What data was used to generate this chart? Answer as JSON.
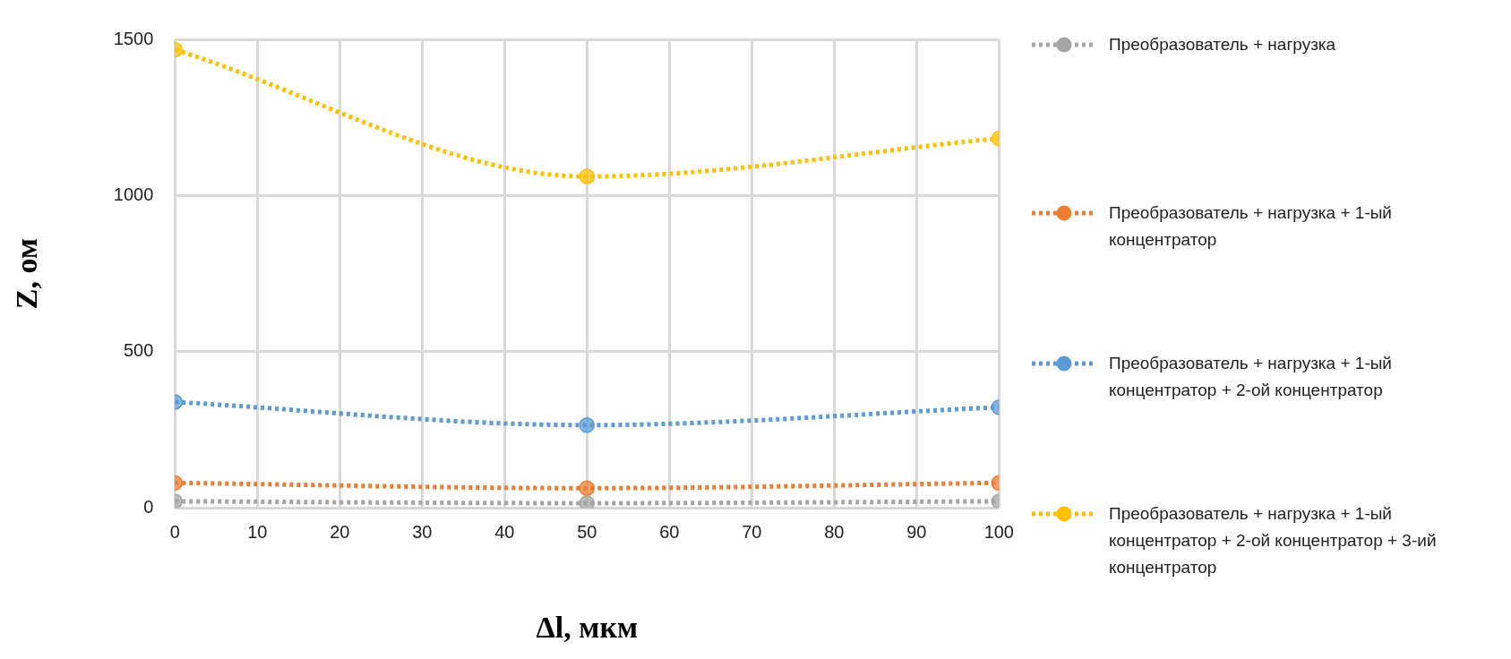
{
  "chart_data": {
    "type": "line",
    "xlabel": "Δl, мкм",
    "ylabel": "Z, ом",
    "x": [
      0,
      50,
      100
    ],
    "xlim": [
      0,
      100
    ],
    "xticks": [
      0,
      10,
      20,
      30,
      40,
      50,
      60,
      70,
      80,
      90,
      100
    ],
    "ylim": [
      0,
      1500
    ],
    "yticks": [
      0,
      500,
      1000,
      1500
    ],
    "grid": true,
    "legend": "right",
    "marker": "circle",
    "line_style": "dotted",
    "series": [
      {
        "name": "Преобразователь + нагрузка",
        "color": "#a5a5a5",
        "values": [
          21,
          15,
          21
        ]
      },
      {
        "name": "Преобразователь + нагрузка + 1-ый концентратор",
        "color": "#ed7d31",
        "values": [
          80,
          63,
          80
        ]
      },
      {
        "name": "Преобразователь + нагрузка + 1-ый концентратор + 2-ой концентратор",
        "color": "#5b9bd5",
        "values": [
          339,
          265,
          322
        ]
      },
      {
        "name": "Преобразователь + нагрузка + 1-ый концентратор + 2-ой концентратор + 3-ий концентратор",
        "color": "#ffc000",
        "values": [
          1467,
          1061,
          1183
        ]
      }
    ]
  }
}
